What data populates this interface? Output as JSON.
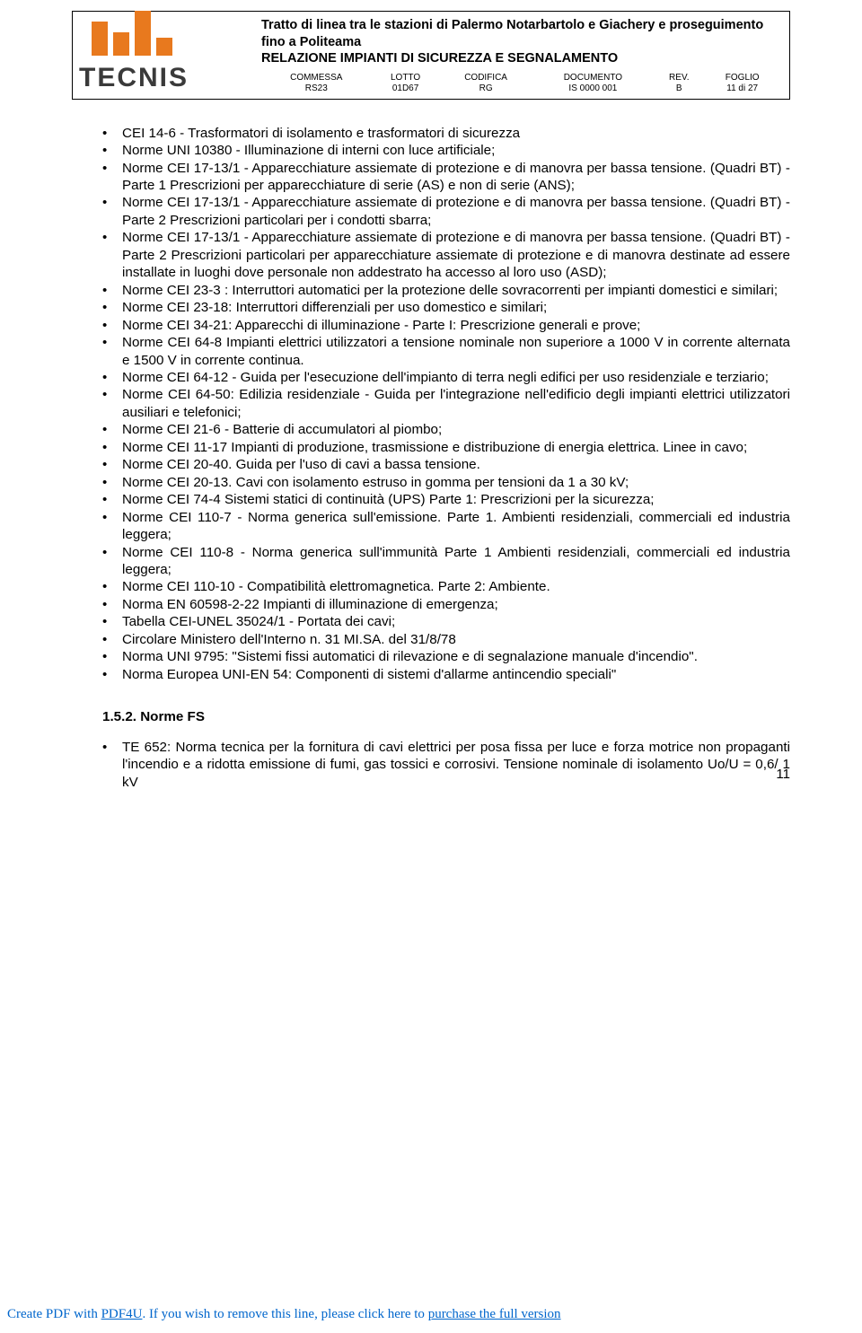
{
  "logo": {
    "text": "TECNIS",
    "bar_color": "#e8791e"
  },
  "header": {
    "title_line1": "Tratto di linea tra le stazioni di Palermo Notarbartolo e Giachery e proseguimento fino a Politeama",
    "title_line2": "RELAZIONE IMPIANTI DI SICUREZZA E SEGNALAMENTO",
    "cols": {
      "c1": "COMMESSA",
      "c2": "LOTTO",
      "c3": "CODIFICA",
      "c4": "DOCUMENTO",
      "c5": "REV.",
      "c6": "FOGLIO",
      "v1": "RS23",
      "v2": "01D67",
      "v3": "RG",
      "v4": "IS 0000 001",
      "v5": "B",
      "v6": "11 di  27"
    }
  },
  "bullets1": [
    "CEI 14-6  - Trasformatori di isolamento e trasformatori di sicurezza",
    "Norme UNI 10380 - Illuminazione di interni con luce artificiale;",
    "Norme CEI 17-13/1 - Apparecchiature assiemate di protezione e di manovra per bassa tensione. (Quadri BT) - Parte 1 Prescrizioni per apparecchiature di serie (AS) e non di serie (ANS);",
    "Norme CEI 17-13/1 - Apparecchiature assiemate di protezione e di manovra per bassa tensione. (Quadri BT) - Parte 2  Prescrizioni particolari per i condotti sbarra;",
    "Norme CEI 17-13/1 - Apparecchiature assiemate di protezione e di manovra per bassa tensione. (Quadri BT) - Parte 2  Prescrizioni particolari per apparecchiature assiemate di protezione e di manovra destinate ad essere installate in luoghi dove personale non addestrato ha accesso al loro uso (ASD);",
    "Norme CEI 23-3 : Interruttori automatici per la protezione delle sovracorrenti per impianti domestici e similari;",
    "Norme CEI 23-18: Interruttori differenziali per uso domestico e similari;",
    "Norme CEI 34-21: Apparecchi di illuminazione - Parte I: Prescrizione generali e prove;",
    "Norme CEI 64-8 Impianti elettrici utilizzatori a tensione nominale non superiore a 1000 V in corrente alternata e 1500 V in corrente continua.",
    "Norme CEI 64-12 - Guida per l'esecuzione dell'impianto di terra negli edifici per uso residenziale e terziario;",
    "Norme CEI 64-50: Edilizia residenziale - Guida per l'integrazione nell'edificio degli impianti elettrici utilizzatori ausiliari e telefonici;",
    "Norme CEI  21-6 - Batterie di accumulatori al piombo;",
    "Norme CEI 11-17 Impianti di produzione, trasmissione e distribuzione di energia elettrica. Linee in cavo;",
    "Norme CEI 20-40. Guida per l'uso di cavi a bassa tensione.",
    "Norme CEI 20-13. Cavi con isolamento estruso in gomma per tensioni da 1 a 30 kV;",
    "Norme CEI 74-4 Sistemi statici di continuità (UPS) Parte 1: Prescrizioni per la sicurezza;",
    "Norme CEI 110-7 - Norma generica sull'emissione. Parte 1. Ambienti residenziali, commerciali ed industria leggera;",
    "Norme CEI 110-8 - Norma generica sull'immunità Parte 1 Ambienti residenziali, commerciali ed industria leggera;",
    "Norme CEI 110-10 - Compatibilità elettromagnetica. Parte 2: Ambiente.",
    "Norma EN 60598-2-22 Impianti di  illuminazione  di emergenza;",
    "Tabella CEI-UNEL 35024/1 - Portata dei cavi;",
    "Circolare Ministero dell'Interno n. 31 MI.SA. del 31/8/78",
    "Norma UNI 9795: \"Sistemi fissi automatici di rilevazione e di segnalazione manuale d'incendio\".",
    "Norma Europea UNI-EN 54: Componenti di sistemi d'allarme antincendio speciali\""
  ],
  "section2_heading": "1.5.2. Norme FS",
  "bullets2": [
    "TE 652: Norma tecnica per la fornitura di cavi elettrici per posa fissa per luce e forza motrice non propaganti l'incendio e a ridotta emissione di fumi, gas tossici e corrosivi. Tensione nominale di isolamento Uo/U = 0,6/ 1 kV"
  ],
  "page_number": "11",
  "footer": {
    "prefix": "Create PDF with ",
    "link1": "PDF4U",
    "middle": ". If you wish to remove this line, please click here to ",
    "link2": "purchase the full version"
  }
}
